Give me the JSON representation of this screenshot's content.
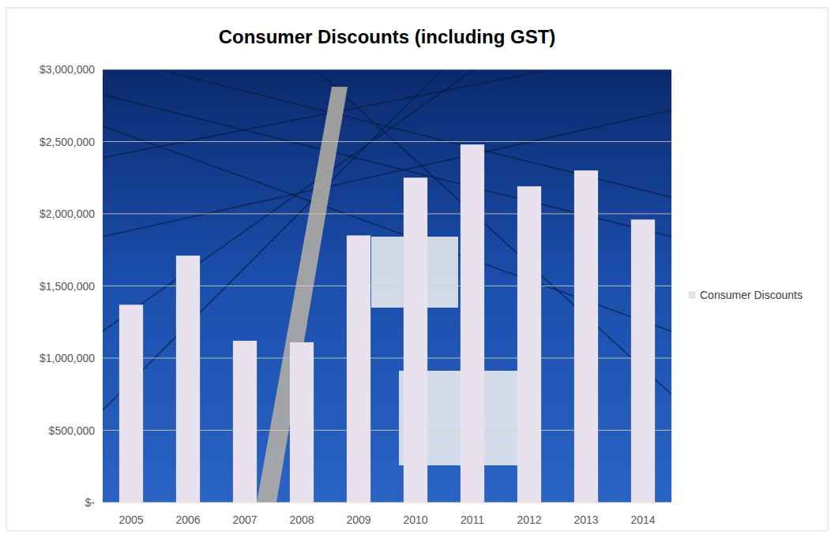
{
  "chart_data": {
    "type": "bar",
    "title": "Consumer Discounts (including GST)",
    "categories": [
      "2005",
      "2006",
      "2007",
      "2008",
      "2009",
      "2010",
      "2011",
      "2012",
      "2013",
      "2014"
    ],
    "series": [
      {
        "name": "Consumer Discounts",
        "color": "#e8e2ee",
        "values": [
          1370000,
          1710000,
          1120000,
          1110000,
          1850000,
          2250000,
          2480000,
          2190000,
          2300000,
          1960000
        ]
      }
    ],
    "ylim": [
      0,
      3000000
    ],
    "yticks": [
      {
        "value": 0,
        "label": "$-"
      },
      {
        "value": 500000,
        "label": "$500,000"
      },
      {
        "value": 1000000,
        "label": "$1,000,000"
      },
      {
        "value": 1500000,
        "label": "$1,500,000"
      },
      {
        "value": 2000000,
        "label": "$2,000,000"
      },
      {
        "value": 2500000,
        "label": "$2,500,000"
      },
      {
        "value": 3000000,
        "label": "$3,000,000"
      }
    ],
    "grid": true,
    "legend": "right"
  }
}
